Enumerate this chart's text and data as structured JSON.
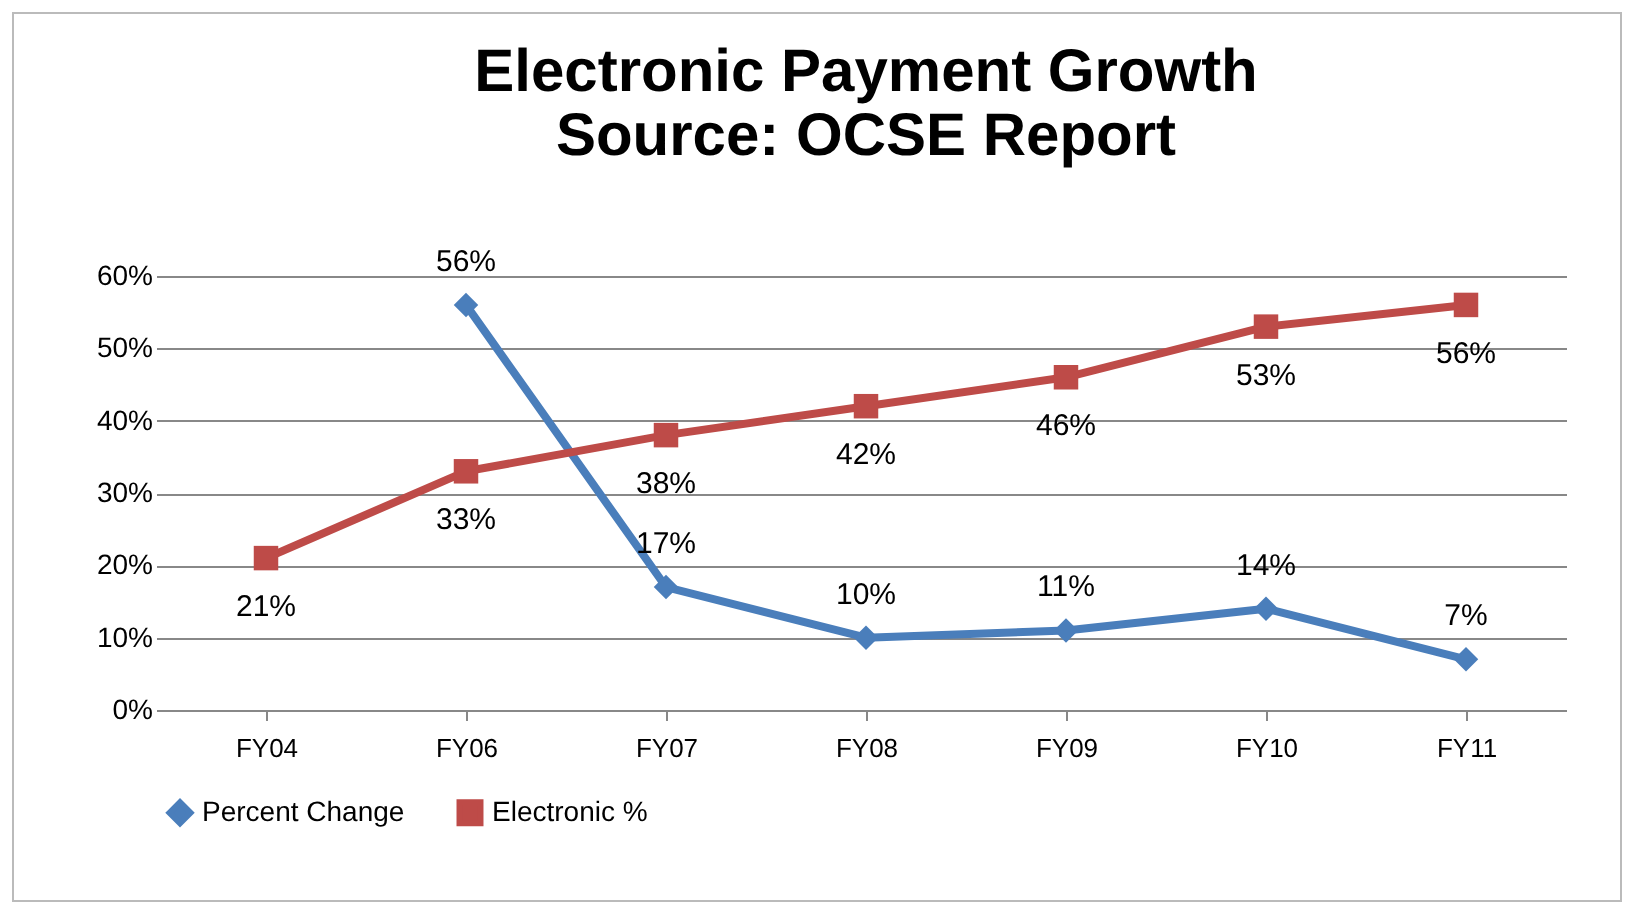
{
  "chart_data": {
    "type": "line",
    "title": "Electronic Payment Growth",
    "subtitle": "Source: OCSE Report",
    "categories": [
      "FY04",
      "FY06",
      "FY07",
      "FY08",
      "FY09",
      "FY10",
      "FY11"
    ],
    "series": [
      {
        "name": "Percent Change",
        "color": "#4a7ebb",
        "marker": "diamond",
        "values": [
          null,
          56,
          17,
          10,
          11,
          14,
          7
        ],
        "value_labels": [
          null,
          "56%",
          "17%",
          "10%",
          "11%",
          "14%",
          "7%"
        ]
      },
      {
        "name": "Electronic %",
        "color": "#be4b48",
        "marker": "square",
        "values": [
          21,
          33,
          38,
          42,
          46,
          53,
          56
        ],
        "value_labels": [
          "21%",
          "33%",
          "38%",
          "42%",
          "46%",
          "53%",
          "56%"
        ]
      }
    ],
    "ylim": [
      0,
      60
    ],
    "yticks": [
      {
        "value": 0,
        "label": "0%"
      },
      {
        "value": 10,
        "label": "10%"
      },
      {
        "value": 20,
        "label": "20%"
      },
      {
        "value": 30,
        "label": "30%"
      },
      {
        "value": 40,
        "label": "40%"
      },
      {
        "value": 50,
        "label": "50%"
      },
      {
        "value": 60,
        "label": "60%"
      }
    ],
    "grid": "y",
    "legend": "bottom",
    "line_style": "solid"
  }
}
